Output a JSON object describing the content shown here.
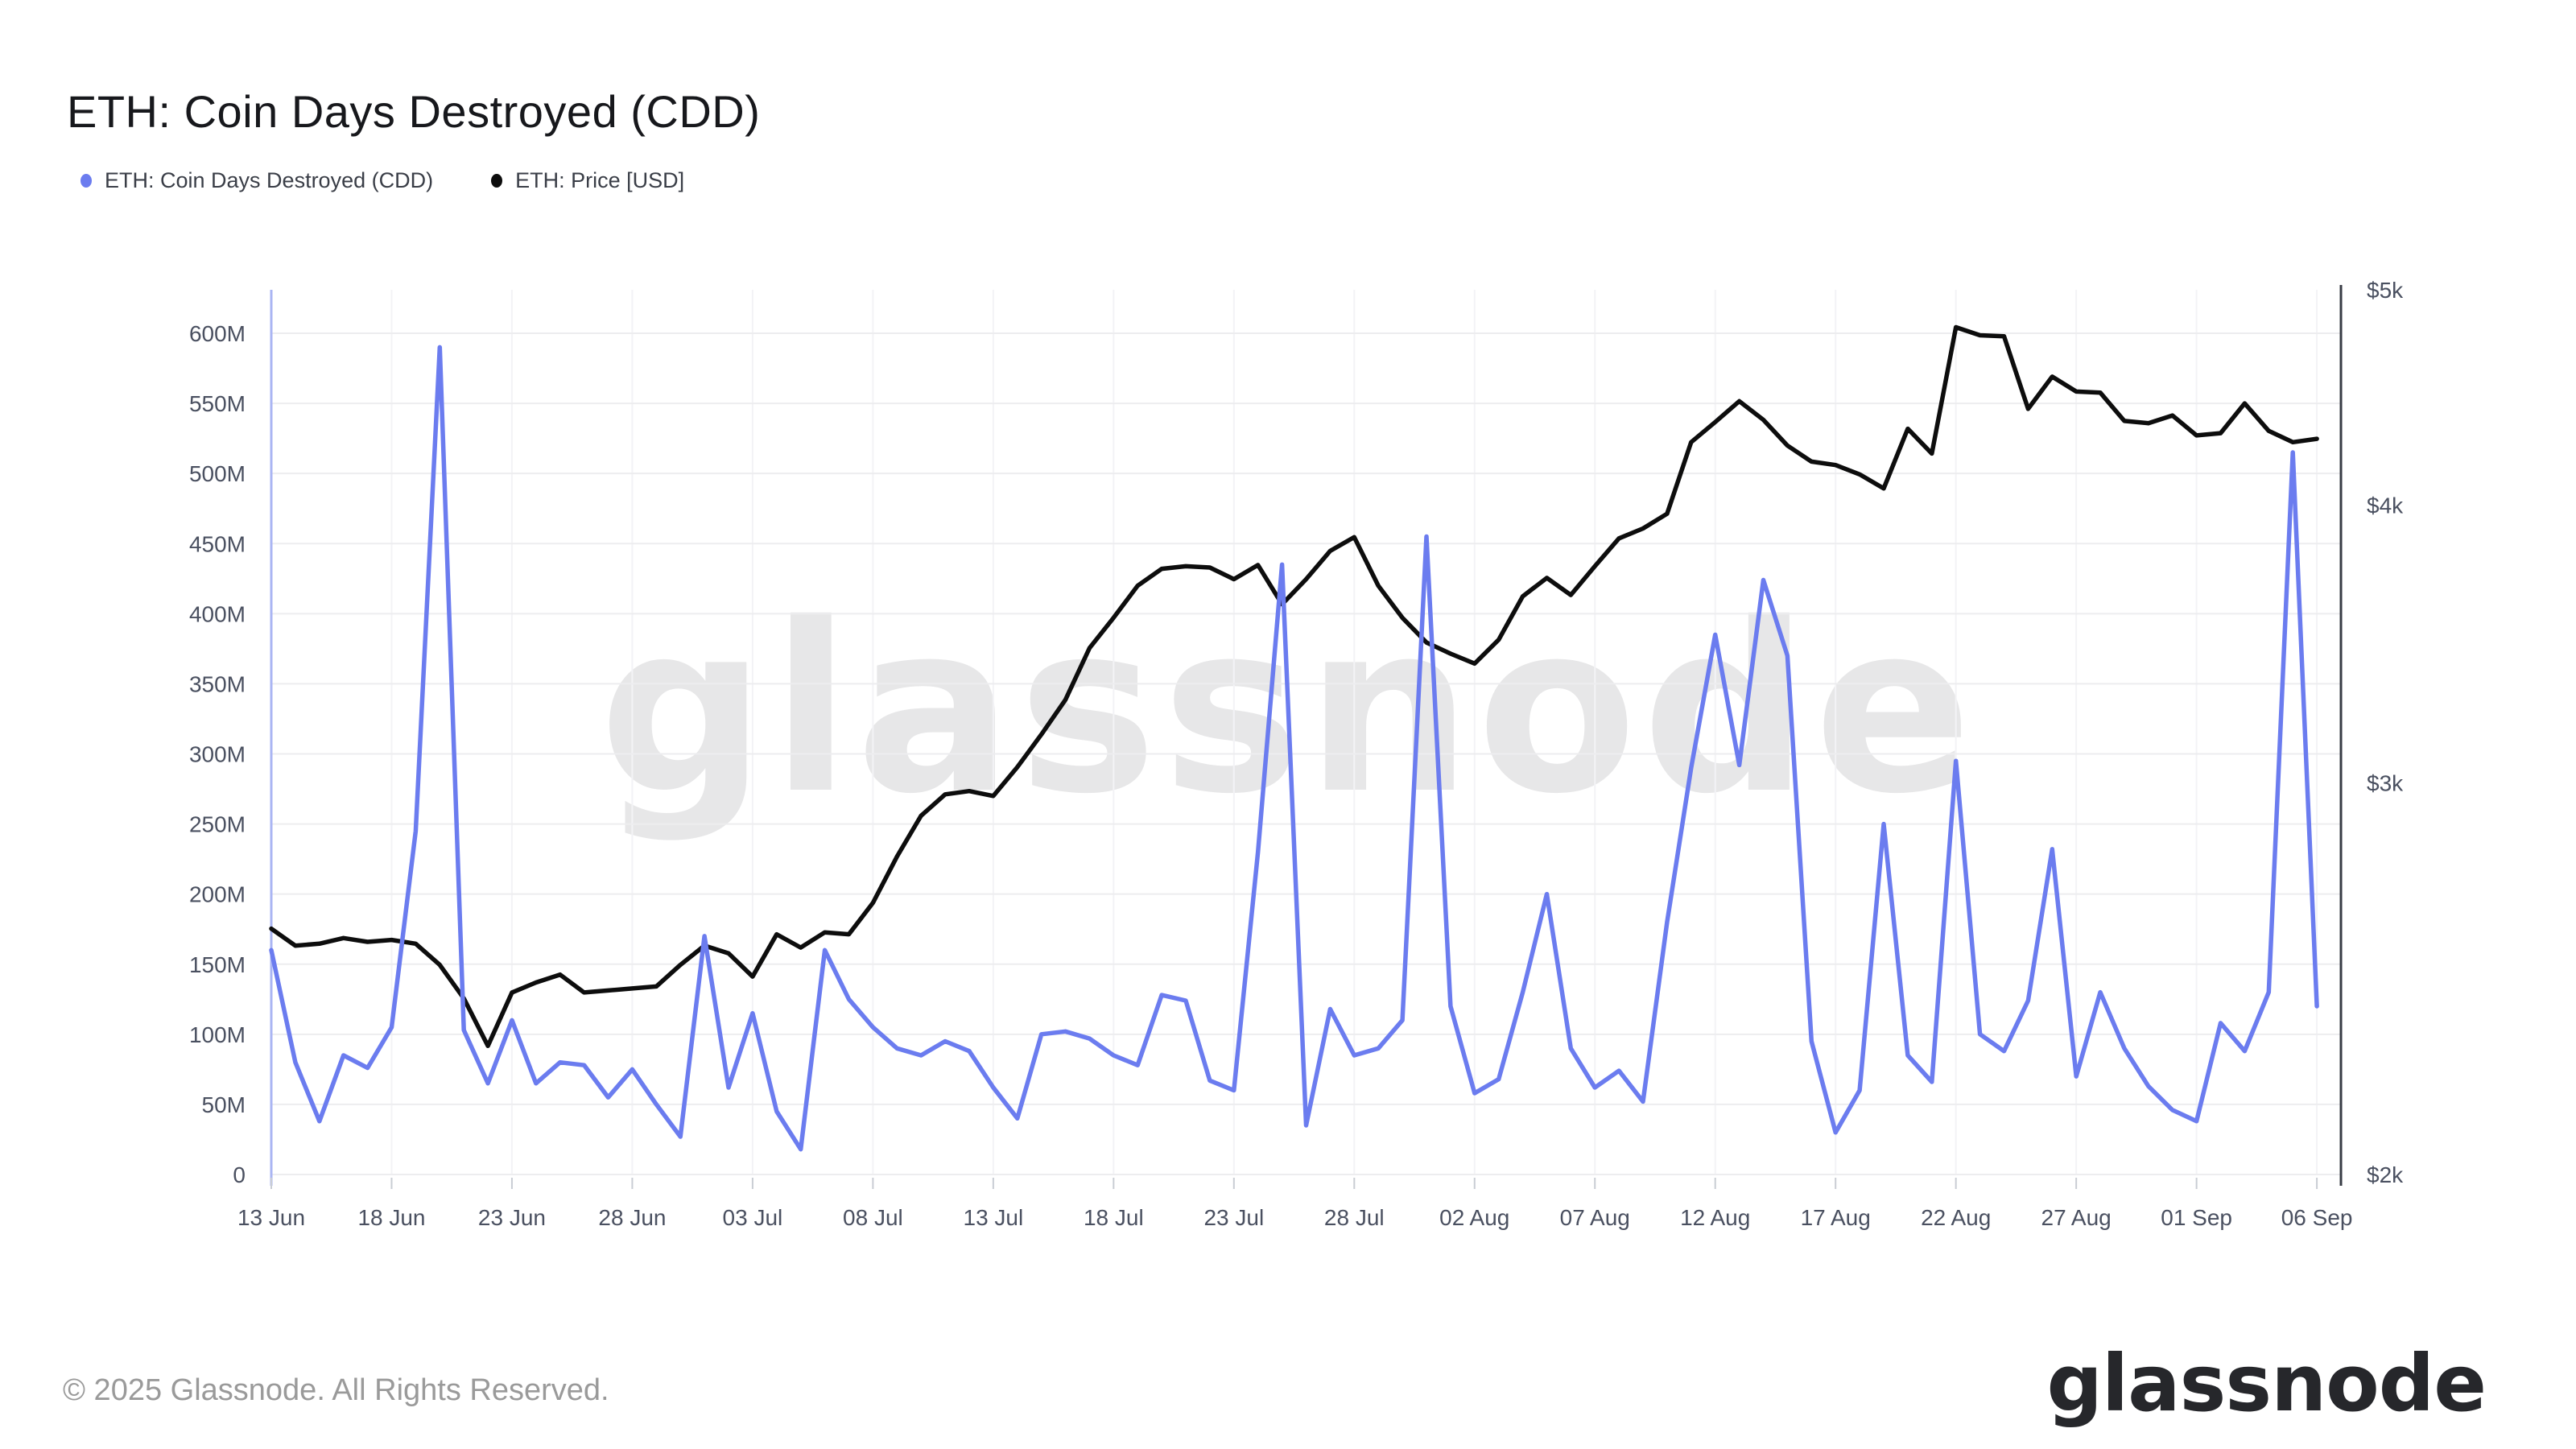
{
  "title": "ETH: Coin Days Destroyed (CDD)",
  "legend": [
    {
      "label": "ETH: Coin Days Destroyed (CDD)",
      "color": "#6b7cef"
    },
    {
      "label": "ETH: Price [USD]",
      "color": "#0d0d0d"
    }
  ],
  "watermark": "glassnode",
  "footer": {
    "copyright": "© 2025 Glassnode. All Rights Reserved.",
    "logo": "glassnode"
  },
  "chart_data": {
    "type": "line",
    "title": "ETH: Coin Days Destroyed (CDD)",
    "grid": true,
    "legend_position": "top-left",
    "x_tick_labels": [
      "13 Jun",
      "18 Jun",
      "23 Jun",
      "28 Jun",
      "03 Jul",
      "08 Jul",
      "13 Jul",
      "18 Jul",
      "23 Jul",
      "28 Jul",
      "02 Aug",
      "07 Aug",
      "12 Aug",
      "17 Aug",
      "22 Aug",
      "27 Aug",
      "01 Sep",
      "06 Sep"
    ],
    "y_left_axis": {
      "min": 0,
      "max": 600,
      "step": 50,
      "unit": "millions",
      "tick_labels": [
        "0",
        "50M",
        "100M",
        "150M",
        "200M",
        "250M",
        "300M",
        "350M",
        "400M",
        "450M",
        "500M",
        "550M",
        "600M"
      ],
      "tick_values": [
        0,
        50,
        100,
        150,
        200,
        250,
        300,
        350,
        400,
        450,
        500,
        550,
        600
      ]
    },
    "y_right_axis": {
      "min": 2000,
      "max": 5000,
      "scale": "log",
      "unit": "USD",
      "tick_labels": [
        "$2k",
        "$3k",
        "$4k",
        "$5k"
      ],
      "tick_values": [
        2000,
        3000,
        4000,
        5000
      ]
    },
    "dates": [
      "13 Jun",
      "14 Jun",
      "15 Jun",
      "16 Jun",
      "17 Jun",
      "18 Jun",
      "19 Jun",
      "20 Jun",
      "21 Jun",
      "22 Jun",
      "23 Jun",
      "24 Jun",
      "25 Jun",
      "26 Jun",
      "27 Jun",
      "28 Jun",
      "29 Jun",
      "30 Jun",
      "01 Jul",
      "02 Jul",
      "03 Jul",
      "04 Jul",
      "05 Jul",
      "06 Jul",
      "07 Jul",
      "08 Jul",
      "09 Jul",
      "10 Jul",
      "11 Jul",
      "12 Jul",
      "13 Jul",
      "14 Jul",
      "15 Jul",
      "16 Jul",
      "17 Jul",
      "18 Jul",
      "19 Jul",
      "20 Jul",
      "21 Jul",
      "22 Jul",
      "23 Jul",
      "24 Jul",
      "25 Jul",
      "26 Jul",
      "27 Jul",
      "28 Jul",
      "29 Jul",
      "30 Jul",
      "31 Jul",
      "01 Aug",
      "02 Aug",
      "03 Aug",
      "04 Aug",
      "05 Aug",
      "06 Aug",
      "07 Aug",
      "08 Aug",
      "09 Aug",
      "10 Aug",
      "11 Aug",
      "12 Aug",
      "13 Aug",
      "14 Aug",
      "15 Aug",
      "16 Aug",
      "17 Aug",
      "18 Aug",
      "19 Aug",
      "20 Aug",
      "21 Aug",
      "22 Aug",
      "23 Aug",
      "24 Aug",
      "25 Aug",
      "26 Aug",
      "27 Aug",
      "28 Aug",
      "29 Aug",
      "30 Aug",
      "31 Aug",
      "01 Sep",
      "02 Sep",
      "03 Sep",
      "04 Sep",
      "05 Sep",
      "06 Sep"
    ],
    "series": [
      {
        "name": "ETH: Coin Days Destroyed (CDD)",
        "axis": "left",
        "color": "#6b7cef",
        "unit": "M coin-days",
        "values": [
          160,
          80,
          38,
          85,
          76,
          105,
          245,
          590,
          103,
          65,
          110,
          65,
          80,
          78,
          55,
          75,
          50,
          27,
          170,
          62,
          115,
          45,
          18,
          160,
          125,
          105,
          90,
          85,
          95,
          88,
          62,
          40,
          100,
          102,
          97,
          85,
          78,
          128,
          124,
          67,
          60,
          230,
          435,
          35,
          118,
          85,
          90,
          110,
          455,
          120,
          58,
          68,
          130,
          200,
          90,
          62,
          74,
          52,
          180,
          290,
          385,
          292,
          424,
          370,
          95,
          30,
          60,
          250,
          85,
          66,
          295,
          100,
          88,
          124,
          232,
          70,
          130,
          90,
          63,
          46,
          38,
          108,
          88,
          130,
          515,
          120
        ]
      },
      {
        "name": "ETH: Price [USD]",
        "axis": "right",
        "color": "#0d0d0d",
        "unit": "USD",
        "values": [
          2580,
          2535,
          2540,
          2555,
          2545,
          2550,
          2540,
          2485,
          2400,
          2285,
          2415,
          2440,
          2460,
          2415,
          2420,
          2425,
          2430,
          2485,
          2535,
          2515,
          2455,
          2565,
          2530,
          2570,
          2565,
          2650,
          2780,
          2900,
          2965,
          2975,
          2960,
          3050,
          3155,
          3270,
          3450,
          3560,
          3680,
          3745,
          3755,
          3750,
          3705,
          3760,
          3610,
          3705,
          3815,
          3870,
          3680,
          3560,
          3470,
          3430,
          3395,
          3480,
          3640,
          3710,
          3645,
          3755,
          3865,
          3905,
          3965,
          4270,
          4360,
          4455,
          4370,
          4255,
          4185,
          4170,
          4130,
          4070,
          4330,
          4220,
          4810,
          4770,
          4765,
          4420,
          4570,
          4500,
          4495,
          4365,
          4355,
          4390,
          4300,
          4310,
          4445,
          4320,
          4270,
          4285
        ]
      }
    ]
  }
}
